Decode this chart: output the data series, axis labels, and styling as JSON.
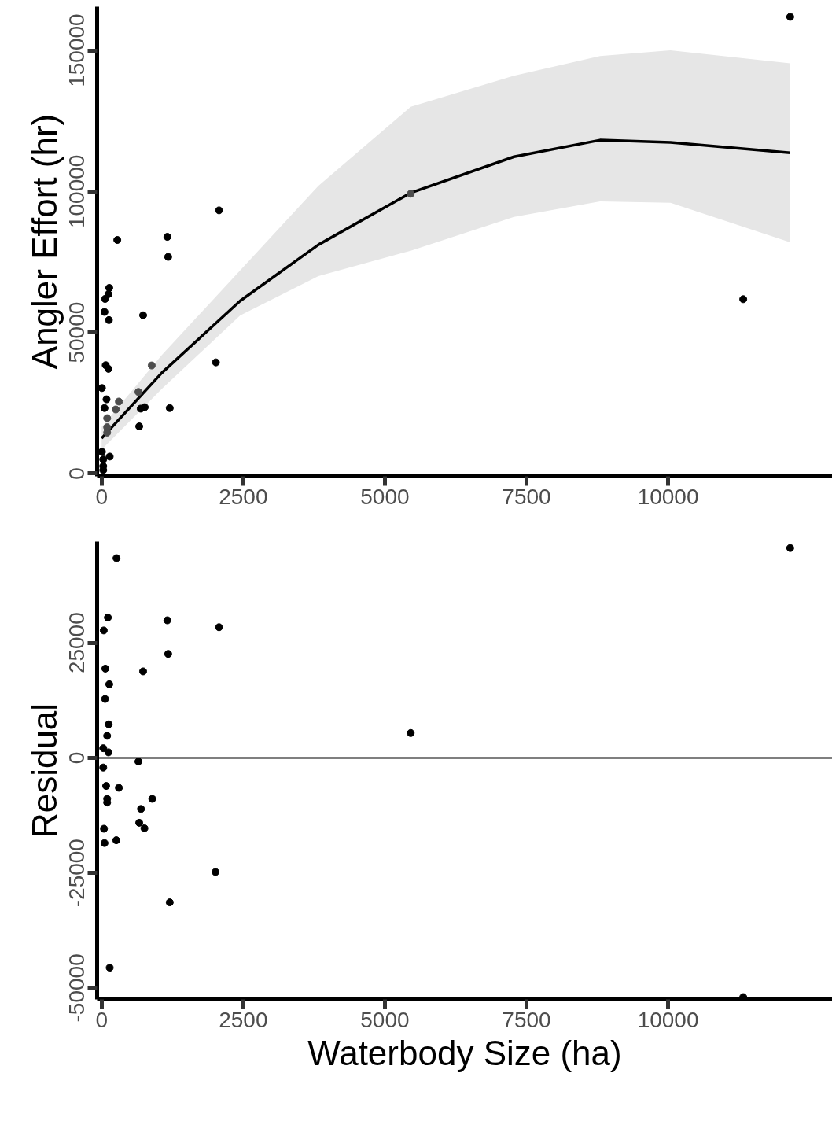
{
  "chart_data": [
    {
      "type": "scatter",
      "ylabel": "Angler Effort (hr)",
      "xlim": [
        -80,
        12900
      ],
      "ylim": [
        -1000,
        165500
      ],
      "xticks": [
        0,
        2500,
        5000,
        7500,
        10000
      ],
      "yticks": [
        0,
        50000,
        100000,
        150000
      ],
      "grid": false,
      "marker": "circle",
      "series": [
        {
          "color": "#000000",
          "x": [
            12155,
            11326,
            2072,
            2017,
            1160,
            1174,
            1202,
            732,
            276,
            760,
            690,
            663,
            134,
            120,
            60,
            50,
            128,
            72,
            120,
            5,
            86,
            50,
            142,
            5,
            28,
            28,
            28
          ],
          "values": [
            161900,
            61800,
            93300,
            39400,
            83900,
            76800,
            23200,
            56100,
            82800,
            23500,
            23000,
            16700,
            65800,
            63600,
            61900,
            57300,
            54400,
            38400,
            37100,
            30300,
            26300,
            23200,
            6000,
            7700,
            5000,
            2600,
            1200
          ]
        },
        {
          "color": "#4d4d4d",
          "x": [
            5456,
            649,
            884,
            304,
            249,
            97,
            97,
            97
          ],
          "values": [
            99200,
            28900,
            38300,
            25500,
            22700,
            19600,
            16400,
            14500
          ]
        },
        {
          "type": "line",
          "color": "#000000",
          "marker": "none",
          "line_style": "solid",
          "x": [
            0,
            1063,
            2445,
            3826,
            5456,
            7279,
            8798,
            10041,
            12155
          ],
          "values": [
            12500,
            35700,
            61200,
            81100,
            99500,
            112300,
            118200,
            117400,
            113700
          ],
          "lower": [
            8500,
            30000,
            56000,
            70000,
            79000,
            91000,
            96500,
            96000,
            82000
          ],
          "upper": [
            16500,
            42000,
            72000,
            102000,
            130000,
            141000,
            148000,
            150000,
            145400
          ]
        }
      ]
    },
    {
      "type": "scatter",
      "xlabel": "Waterbody Size (ha)",
      "ylabel": "Residual",
      "xlim": [
        -80,
        12900
      ],
      "ylim": [
        -52500,
        47000
      ],
      "xticks": [
        0,
        2500,
        5000,
        7500,
        10000
      ],
      "yticks": [
        -50000,
        -25000,
        0,
        25000
      ],
      "grid": false,
      "marker": "circle",
      "ref_lines": [
        {
          "axis": "y",
          "value": 0,
          "color": "#000000"
        }
      ],
      "series": [
        {
          "color": "#000000",
          "x": [
            12155,
            11326,
            5456,
            2072,
            2010,
            1160,
            1174,
            1202,
            732,
            262,
            695,
            663,
            755,
            894,
            304,
            649,
            258,
            110,
            37,
            65,
            134,
            60,
            124,
            97,
            120,
            28,
            28,
            79,
            97,
            97,
            41,
            50,
            142
          ],
          "values": [
            45600,
            -52000,
            5400,
            28400,
            -24800,
            29900,
            22600,
            -31400,
            18800,
            43400,
            -11100,
            -14100,
            -15300,
            -8900,
            -6500,
            -800,
            -17900,
            30500,
            27700,
            19400,
            16000,
            12800,
            7300,
            4800,
            1200,
            2100,
            -2100,
            -6100,
            -8900,
            -9700,
            -15400,
            -18500,
            -45600
          ]
        }
      ]
    }
  ]
}
